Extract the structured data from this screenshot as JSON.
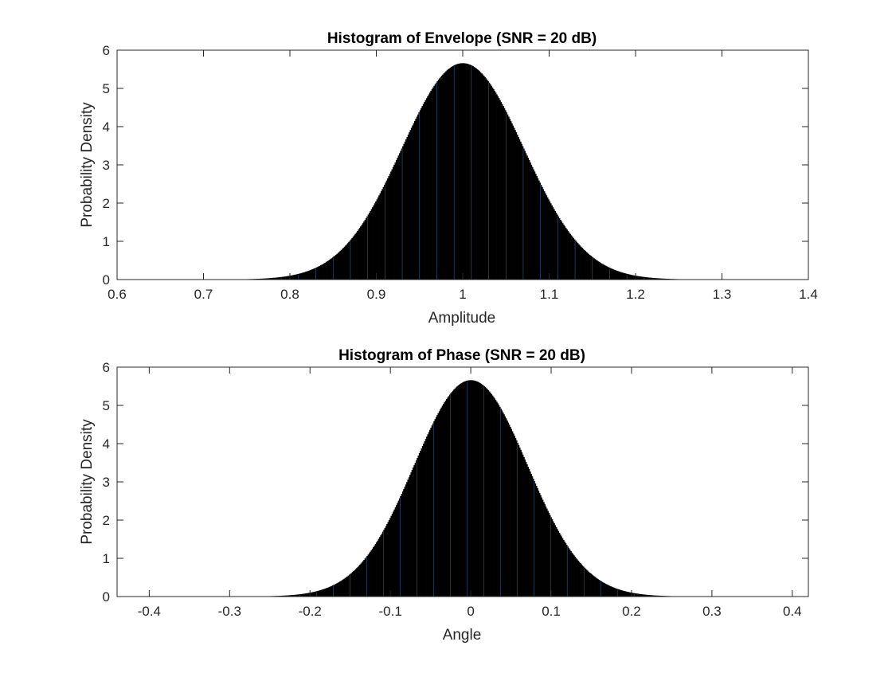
{
  "chart_data": [
    {
      "type": "bar",
      "title": "Histogram of Envelope (SNR = 20 dB)",
      "xlabel": "Amplitude",
      "ylabel": "Probability Density",
      "xlim": [
        0.6,
        1.4
      ],
      "ylim": [
        0,
        6
      ],
      "xticks": [
        0.6,
        0.7,
        0.8,
        0.9,
        1,
        1.1,
        1.2,
        1.3,
        1.4
      ],
      "xtick_labels": [
        "0.6",
        "0.7",
        "0.8",
        "0.9",
        "1",
        "1.1",
        "1.2",
        "1.3",
        "1.4"
      ],
      "yticks": [
        0,
        1,
        2,
        3,
        4,
        5,
        6
      ],
      "ytick_labels": [
        "0",
        "1",
        "2",
        "3",
        "4",
        "5",
        "6"
      ],
      "grid": false,
      "bar_color": "#000000",
      "edge_color": "#4a6fa5",
      "distribution": {
        "shape": "gaussian",
        "mean": 1.0,
        "std": 0.0705,
        "peak_density": 5.66,
        "data_range": [
          0.63,
          1.38
        ]
      }
    },
    {
      "type": "bar",
      "title": "Histogram of Phase (SNR = 20 dB)",
      "xlabel": "Angle",
      "ylabel": "Probability Density",
      "xlim": [
        -0.44,
        0.42
      ],
      "ylim": [
        0,
        6
      ],
      "xticks": [
        -0.4,
        -0.3,
        -0.2,
        -0.1,
        0,
        0.1,
        0.2,
        0.3,
        0.4
      ],
      "xtick_labels": [
        "-0.4",
        "-0.3",
        "-0.2",
        "-0.1",
        "0",
        "0.1",
        "0.2",
        "0.3",
        "0.4"
      ],
      "yticks": [
        0,
        1,
        2,
        3,
        4,
        5,
        6
      ],
      "ytick_labels": [
        "0",
        "1",
        "2",
        "3",
        "4",
        "5",
        "6"
      ],
      "grid": false,
      "bar_color": "#000000",
      "edge_color": "#4a6fa5",
      "distribution": {
        "shape": "gaussian",
        "mean": 0.0,
        "std": 0.0705,
        "peak_density": 5.66,
        "data_range": [
          -0.4,
          0.38
        ]
      }
    }
  ]
}
